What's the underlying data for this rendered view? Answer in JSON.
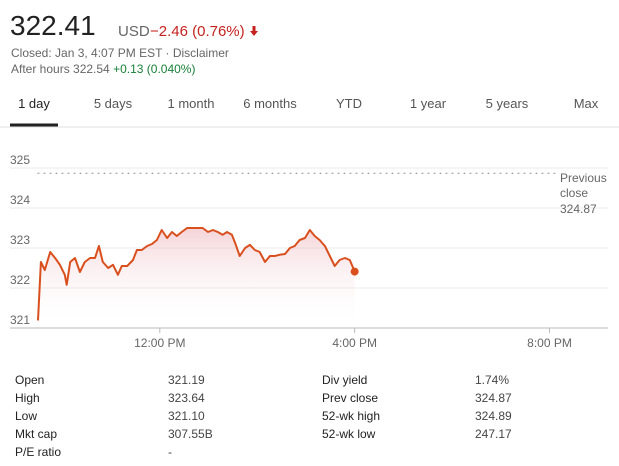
{
  "header": {
    "price": "322.41",
    "currency": "USD",
    "change": "−2.46 (0.76%)",
    "status": "Closed: Jan 3, 4:07 PM EST · Disclaimer",
    "after_hours_label": "After hours 322.54",
    "after_hours_change": "+0.13 (0.040%)"
  },
  "tabs": [
    "1 day",
    "5 days",
    "1 month",
    "6 months",
    "YTD",
    "1 year",
    "5 years",
    "Max"
  ],
  "chart_data": {
    "type": "line",
    "color": "#d9501e",
    "grid": true,
    "x": [
      9.5,
      9.56,
      9.64,
      9.75,
      9.85,
      9.95,
      10.05,
      10.09,
      10.16,
      10.26,
      10.36,
      10.46,
      10.57,
      10.67,
      10.75,
      10.83,
      10.94,
      11.04,
      11.14,
      11.22,
      11.33,
      11.45,
      11.53,
      11.63,
      11.74,
      11.84,
      11.94,
      12.04,
      12.15,
      12.25,
      12.35,
      12.45,
      12.56,
      12.72,
      12.88,
      12.99,
      13.09,
      13.19,
      13.29,
      13.38,
      13.48,
      13.56,
      13.64,
      13.75,
      13.85,
      13.95,
      14.05,
      14.16,
      14.26,
      14.36,
      14.46,
      14.57,
      14.67,
      14.77,
      14.87,
      14.98,
      15.08,
      15.18,
      15.28,
      15.39,
      15.49,
      15.59,
      15.69,
      15.8,
      15.9,
      16
    ],
    "values": [
      321.19,
      322.65,
      322.45,
      322.9,
      322.75,
      322.58,
      322.33,
      322.08,
      322.65,
      322.75,
      322.4,
      322.65,
      322.75,
      322.75,
      323.05,
      322.65,
      322.5,
      322.58,
      322.33,
      322.55,
      322.55,
      322.7,
      322.95,
      322.95,
      323.05,
      323.1,
      323.2,
      323.45,
      323.25,
      323.4,
      323.3,
      323.4,
      323.5,
      323.5,
      323.5,
      323.4,
      323.45,
      323.4,
      323.33,
      323.4,
      323.33,
      323.08,
      322.8,
      323.0,
      323.08,
      322.95,
      322.9,
      322.65,
      322.8,
      322.8,
      322.83,
      322.85,
      323.0,
      323.05,
      323.2,
      323.25,
      323.45,
      323.3,
      323.2,
      323.05,
      322.8,
      322.55,
      322.7,
      322.75,
      322.7,
      322.41
    ],
    "xlim": [
      9.5,
      21.2
    ],
    "xticks": [
      {
        "value": 12,
        "label": "12:00 PM"
      },
      {
        "value": 16,
        "label": "4:00 PM"
      },
      {
        "value": 20,
        "label": "8:00 PM"
      }
    ],
    "ylim": [
      321,
      325
    ],
    "yticks": [
      321,
      322,
      323,
      324,
      325
    ],
    "previous_close_label": "Previous close",
    "previous_close": 324.87
  },
  "stats": {
    "rows": [
      [
        "Open",
        "321.19",
        "Div yield",
        "1.74%"
      ],
      [
        "High",
        "323.64",
        "Prev close",
        "324.87"
      ],
      [
        "Low",
        "321.10",
        "52-wk high",
        "324.89"
      ],
      [
        "Mkt cap",
        "307.55B",
        "52-wk low",
        "247.17"
      ],
      [
        "P/E ratio",
        "-"
      ]
    ]
  }
}
